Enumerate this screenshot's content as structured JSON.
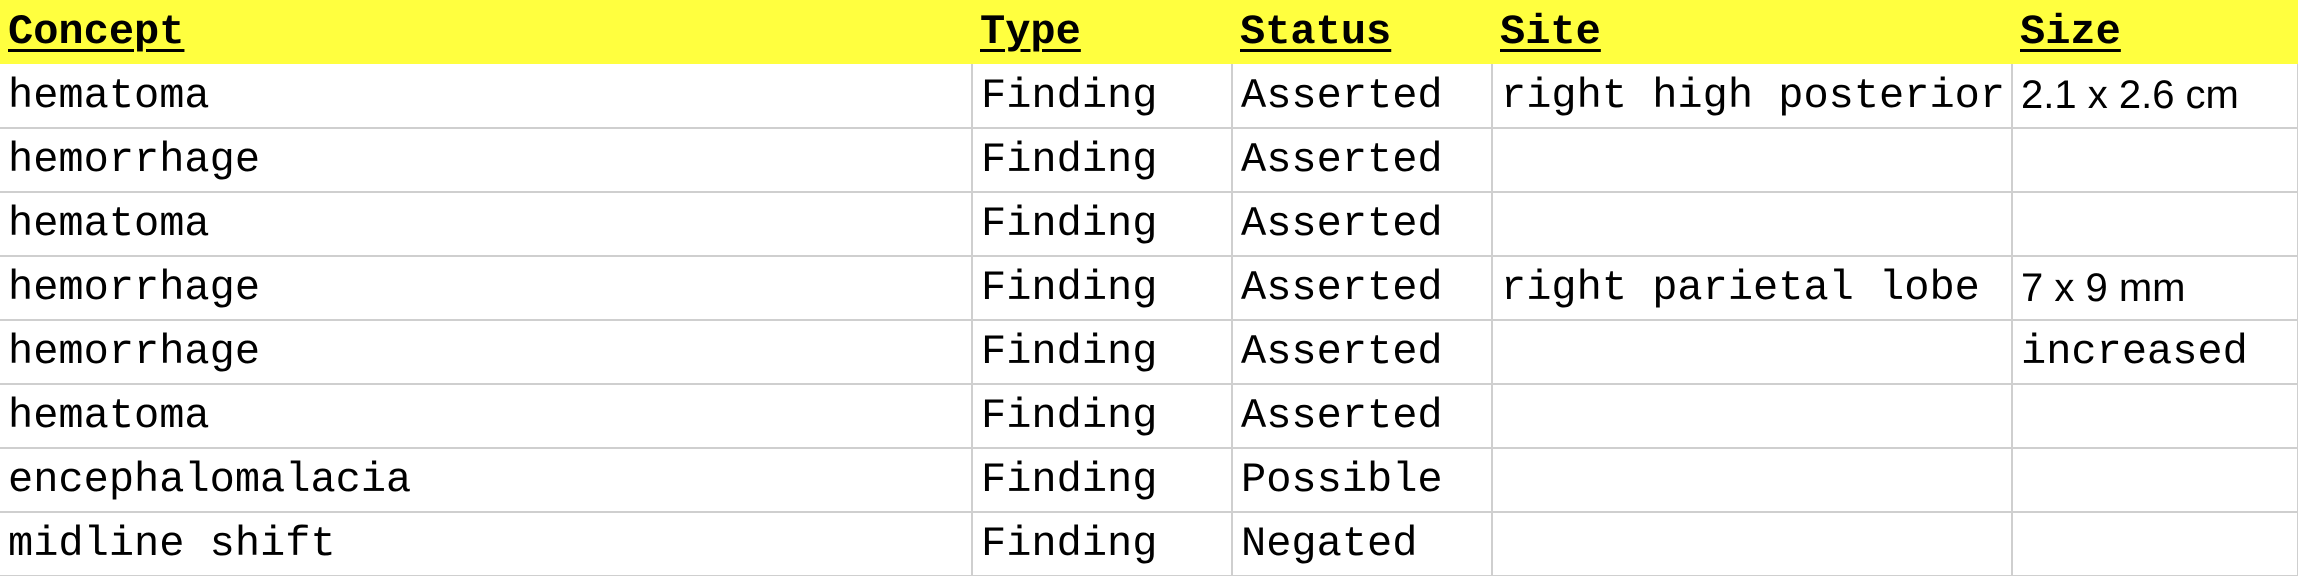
{
  "header_color": "#ffff3f",
  "columns": {
    "concept": "Concept",
    "type": "Type",
    "status": "Status",
    "site": "Site",
    "size": "Size"
  },
  "rows": [
    {
      "concept": "hematoma",
      "type": "Finding",
      "status": "Asserted",
      "site": "right high posterior",
      "size": "2.1 x 2.6 cm"
    },
    {
      "concept": "hemorrhage",
      "type": "Finding",
      "status": "Asserted",
      "site": "",
      "size": ""
    },
    {
      "concept": "hematoma",
      "type": "Finding",
      "status": "Asserted",
      "site": "",
      "size": ""
    },
    {
      "concept": "hemorrhage",
      "type": "Finding",
      "status": "Asserted",
      "site": "right parietal lobe",
      "size": "7 x 9 mm"
    },
    {
      "concept": "hemorrhage",
      "type": "Finding",
      "status": "Asserted",
      "site": "",
      "size": "increased"
    },
    {
      "concept": "hematoma",
      "type": "Finding",
      "status": "Asserted",
      "site": "",
      "size": ""
    },
    {
      "concept": "encephalomalacia",
      "type": "Finding",
      "status": "Possible",
      "site": "",
      "size": ""
    },
    {
      "concept": "midline shift",
      "type": "Finding",
      "status": "Negated",
      "site": "",
      "size": ""
    }
  ]
}
